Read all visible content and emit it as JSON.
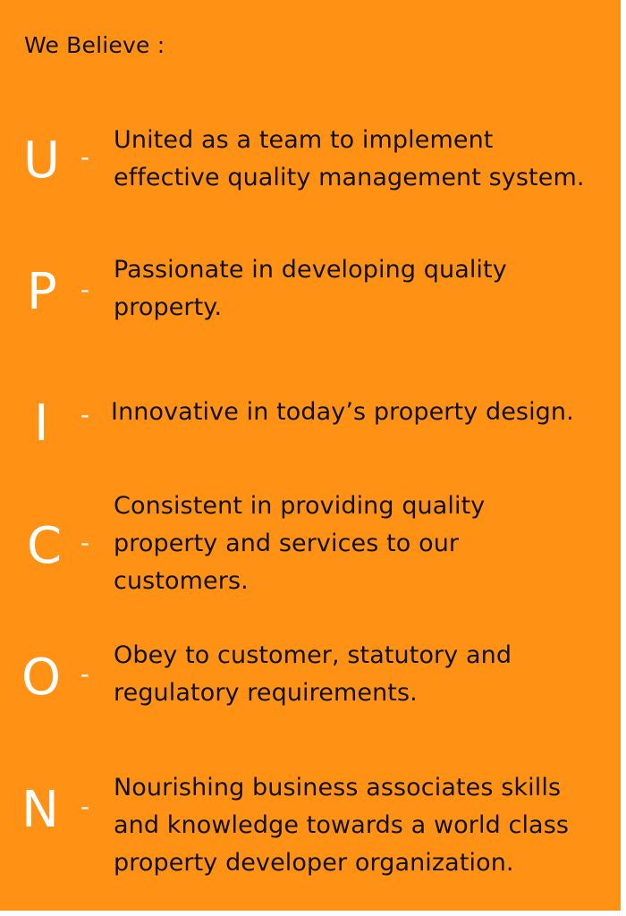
{
  "heading": "We Believe :",
  "items": [
    {
      "letter": "U",
      "dash": "-",
      "lines": [
        "United as a team to implement",
        "effective quality management system."
      ]
    },
    {
      "letter": "P",
      "dash": "-",
      "lines": [
        "Passionate in developing quality",
        "property."
      ]
    },
    {
      "letter": "I",
      "dash": "-",
      "lines": [
        "Innovative in today’s property design."
      ]
    },
    {
      "letter": "C",
      "dash": "-",
      "lines": [
        "Consistent in providing quality",
        "property and services to our",
        "customers."
      ]
    },
    {
      "letter": "O",
      "dash": "-",
      "lines": [
        "Obey to customer, statutory and",
        "regulatory requirements."
      ]
    },
    {
      "letter": "N",
      "dash": "-",
      "lines": [
        "Nourishing business associates skills",
        "and knowledge towards a world class",
        "property developer organization."
      ]
    }
  ]
}
